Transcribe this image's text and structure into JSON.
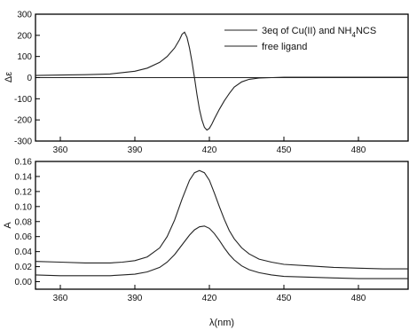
{
  "chart_data": [
    {
      "id": "cd",
      "type": "line",
      "ylabel": "Δε",
      "xlim": [
        350,
        500
      ],
      "ylim": [
        -300,
        300
      ],
      "x_ticks": [
        360,
        390,
        420,
        450,
        480
      ],
      "x_tick_labels": [
        "360",
        "390",
        "420",
        "450",
        "480"
      ],
      "y_ticks": [
        -300,
        -200,
        -100,
        0,
        100,
        200,
        300
      ],
      "y_tick_labels": [
        "-300",
        "-200",
        "-100",
        "0",
        "100",
        "200",
        "300"
      ],
      "grid": false,
      "legend_placement": "top-right",
      "legend": [
        {
          "prefix": "3eq of Cu(II) and NH",
          "sub": "4",
          "suffix": "NCS"
        },
        {
          "prefix": "free ligand",
          "sub": "",
          "suffix": ""
        }
      ],
      "series": [
        {
          "x": [
            350,
            360,
            370,
            380,
            390,
            395,
            400,
            403,
            406,
            408,
            409,
            410,
            411,
            412,
            413,
            414,
            415,
            416,
            417,
            418,
            419,
            420,
            421,
            422,
            424,
            426,
            428,
            430,
            433,
            436,
            440,
            445,
            450,
            460,
            470,
            480,
            490,
            500
          ],
          "y": [
            10,
            12,
            14,
            17,
            30,
            45,
            72,
            100,
            140,
            180,
            205,
            215,
            190,
            140,
            75,
            0,
            -80,
            -150,
            -200,
            -235,
            -248,
            -240,
            -220,
            -195,
            -150,
            -110,
            -75,
            -45,
            -20,
            -8,
            -2,
            0,
            2,
            2,
            2,
            2,
            2,
            2
          ]
        },
        {
          "x": [
            350,
            380,
            410,
            420,
            450,
            480,
            500
          ],
          "y": [
            0,
            0,
            0,
            0,
            0,
            0,
            0
          ]
        }
      ]
    },
    {
      "id": "abs",
      "type": "line",
      "xlabel": "λ(nm)",
      "ylabel": "A",
      "xlim": [
        350,
        500
      ],
      "ylim": [
        -0.01,
        0.16
      ],
      "x_ticks": [
        360,
        390,
        420,
        450,
        480
      ],
      "x_tick_labels": [
        "360",
        "390",
        "420",
        "450",
        "480"
      ],
      "y_ticks": [
        0,
        0.02,
        0.04,
        0.06,
        0.08,
        0.1,
        0.12,
        0.14,
        0.16
      ],
      "y_tick_labels": [
        "0.00",
        "0.02",
        "0.04",
        "0.06",
        "0.08",
        "0.10",
        "0.12",
        "0.14",
        "0.16"
      ],
      "grid": false,
      "series": [
        {
          "x": [
            350,
            360,
            370,
            380,
            385,
            390,
            395,
            400,
            403,
            406,
            409,
            412,
            414,
            416,
            418,
            420,
            422,
            424,
            426,
            428,
            430,
            433,
            436,
            440,
            445,
            450,
            460,
            470,
            480,
            490,
            500
          ],
          "y": [
            0.027,
            0.026,
            0.025,
            0.025,
            0.026,
            0.028,
            0.033,
            0.045,
            0.06,
            0.082,
            0.11,
            0.135,
            0.145,
            0.148,
            0.145,
            0.135,
            0.118,
            0.1,
            0.083,
            0.068,
            0.057,
            0.045,
            0.037,
            0.03,
            0.026,
            0.023,
            0.021,
            0.019,
            0.018,
            0.017,
            0.017
          ]
        },
        {
          "x": [
            350,
            360,
            370,
            380,
            385,
            390,
            395,
            400,
            403,
            406,
            409,
            412,
            414,
            416,
            418,
            420,
            422,
            424,
            426,
            428,
            430,
            433,
            436,
            440,
            445,
            450,
            460,
            470,
            480,
            490,
            500
          ],
          "y": [
            0.009,
            0.008,
            0.008,
            0.008,
            0.009,
            0.01,
            0.013,
            0.019,
            0.026,
            0.036,
            0.049,
            0.062,
            0.069,
            0.073,
            0.074,
            0.071,
            0.064,
            0.055,
            0.045,
            0.036,
            0.029,
            0.021,
            0.016,
            0.012,
            0.009,
            0.007,
            0.006,
            0.005,
            0.004,
            0.004,
            0.004
          ]
        }
      ]
    }
  ]
}
